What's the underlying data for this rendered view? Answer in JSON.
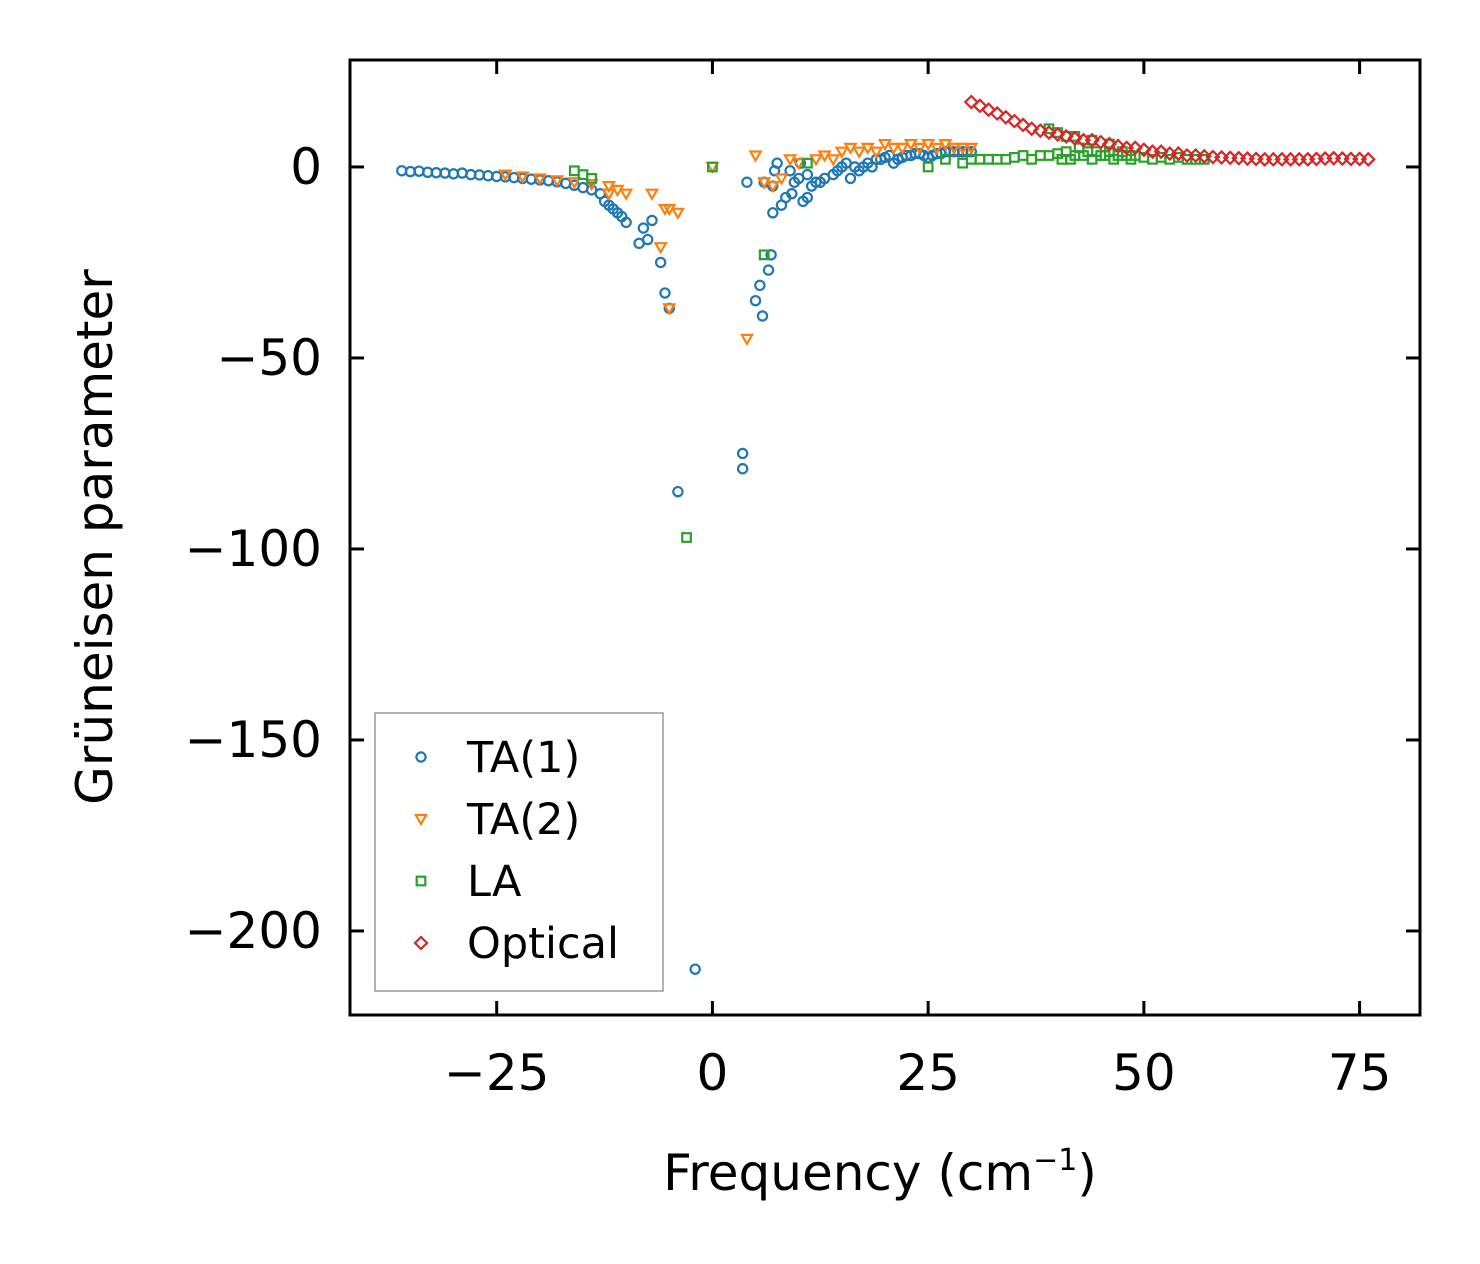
{
  "chart_data": {
    "type": "scatter",
    "title": "",
    "xlabel": "Frequency (cm",
    "xlabel_sup": "−1",
    "xlabel_close": ")",
    "ylabel": "Grüneisen parameter",
    "xlim": [
      -42,
      82
    ],
    "ylim": [
      -222,
      28
    ],
    "xticks": [
      -25,
      0,
      25,
      50,
      75
    ],
    "xtick_labels": [
      "−25",
      "0",
      "25",
      "50",
      "75"
    ],
    "yticks": [
      0,
      -50,
      -100,
      -150,
      -200
    ],
    "ytick_labels": [
      "0",
      "−50",
      "−100",
      "−150",
      "−200"
    ],
    "grid": false,
    "legend_position": "bottom-left",
    "series": [
      {
        "name": "TA(1)",
        "marker": "circle",
        "color": "#1f77b4",
        "points": [
          [
            -36,
            -1
          ],
          [
            -35,
            -1.2
          ],
          [
            -34,
            -1.1
          ],
          [
            -33,
            -1.4
          ],
          [
            -32,
            -1.5
          ],
          [
            -31,
            -1.6
          ],
          [
            -30,
            -1.8
          ],
          [
            -29,
            -1.6
          ],
          [
            -28,
            -2
          ],
          [
            -27,
            -2.1
          ],
          [
            -26,
            -2.3
          ],
          [
            -25,
            -2.5
          ],
          [
            -24,
            -2.6
          ],
          [
            -23,
            -2.8
          ],
          [
            -22,
            -3
          ],
          [
            -21,
            -3.2
          ],
          [
            -20,
            -3.4
          ],
          [
            -19,
            -3.6
          ],
          [
            -18,
            -3.9
          ],
          [
            -17,
            -4.3
          ],
          [
            -16,
            -4.8
          ],
          [
            -15,
            -5.4
          ],
          [
            -14,
            -6
          ],
          [
            -13,
            -7
          ],
          [
            -12.5,
            -9
          ],
          [
            -12,
            -10
          ],
          [
            -11.5,
            -11
          ],
          [
            -11,
            -12
          ],
          [
            -10.5,
            -13
          ],
          [
            -10,
            -14.5
          ],
          [
            -8.5,
            -20
          ],
          [
            -8,
            -16
          ],
          [
            -7.5,
            -19
          ],
          [
            -7,
            -14
          ],
          [
            -6,
            -25
          ],
          [
            -5.5,
            -33
          ],
          [
            -5,
            -37
          ],
          [
            -4,
            -85
          ],
          [
            -2,
            -210
          ],
          [
            3.5,
            -75
          ],
          [
            3.5,
            -79
          ],
          [
            4,
            -4
          ],
          [
            5,
            -35
          ],
          [
            5.5,
            -31
          ],
          [
            5.8,
            -39
          ],
          [
            6,
            -4
          ],
          [
            6.5,
            -27
          ],
          [
            6.8,
            -23
          ],
          [
            7,
            -12
          ],
          [
            7,
            -5
          ],
          [
            7.2,
            -1
          ],
          [
            7.5,
            1
          ],
          [
            8,
            -10
          ],
          [
            8.5,
            -8
          ],
          [
            9,
            -1
          ],
          [
            9.2,
            -7
          ],
          [
            9.5,
            -4
          ],
          [
            10,
            -3
          ],
          [
            10.2,
            1
          ],
          [
            10.5,
            -9
          ],
          [
            11,
            -8
          ],
          [
            11,
            -2
          ],
          [
            11.5,
            -5
          ],
          [
            12,
            -4
          ],
          [
            12.5,
            -4
          ],
          [
            13,
            -3
          ],
          [
            14,
            -2
          ],
          [
            14.5,
            -1
          ],
          [
            15,
            0
          ],
          [
            15.5,
            1
          ],
          [
            16,
            -3
          ],
          [
            16.5,
            0
          ],
          [
            17,
            -1
          ],
          [
            17.5,
            0
          ],
          [
            18,
            1
          ],
          [
            18.5,
            0
          ],
          [
            19,
            2
          ],
          [
            19.5,
            2
          ],
          [
            20,
            2.5
          ],
          [
            20.5,
            3
          ],
          [
            21,
            1
          ],
          [
            21.5,
            2
          ],
          [
            22,
            2.5
          ],
          [
            22.5,
            3
          ],
          [
            23,
            3
          ],
          [
            23.5,
            3.5
          ],
          [
            24,
            3.5
          ],
          [
            24.5,
            3
          ],
          [
            25,
            2.5
          ],
          [
            25.5,
            3
          ],
          [
            26,
            3.5
          ],
          [
            26.5,
            3.5
          ],
          [
            27,
            4
          ],
          [
            27.5,
            4
          ],
          [
            28,
            4
          ],
          [
            28.5,
            4
          ],
          [
            29,
            4
          ],
          [
            29.5,
            4
          ],
          [
            30,
            4
          ]
        ]
      },
      {
        "name": "TA(2)",
        "marker": "triangle-down",
        "color": "#ff7f0e",
        "points": [
          [
            -24,
            -2
          ],
          [
            -22,
            -2.5
          ],
          [
            -20,
            -3
          ],
          [
            -18,
            -3.5
          ],
          [
            -16,
            -4
          ],
          [
            -14,
            -4.5
          ],
          [
            -12,
            -5
          ],
          [
            -12,
            -7
          ],
          [
            -11,
            -6
          ],
          [
            -10,
            -7
          ],
          [
            -7,
            -7
          ],
          [
            -6,
            -21
          ],
          [
            -5.5,
            -11
          ],
          [
            -5,
            -11
          ],
          [
            -5,
            -37
          ],
          [
            -4,
            -12
          ],
          [
            0,
            0
          ],
          [
            4,
            -45
          ],
          [
            5,
            3
          ],
          [
            6,
            -4
          ],
          [
            7,
            -5
          ],
          [
            8,
            -3
          ],
          [
            9,
            2
          ],
          [
            10,
            1
          ],
          [
            12,
            2
          ],
          [
            13,
            3
          ],
          [
            14,
            2
          ],
          [
            15,
            4
          ],
          [
            16,
            5
          ],
          [
            17,
            4
          ],
          [
            18,
            5
          ],
          [
            19,
            4
          ],
          [
            20,
            6
          ],
          [
            21,
            5
          ],
          [
            22,
            5
          ],
          [
            23,
            6
          ],
          [
            24,
            5
          ],
          [
            25,
            6
          ],
          [
            26,
            5
          ],
          [
            27,
            6
          ],
          [
            28,
            5
          ],
          [
            29,
            5
          ],
          [
            30,
            5
          ]
        ]
      },
      {
        "name": "LA",
        "marker": "square",
        "color": "#2ca02c",
        "points": [
          [
            -16,
            -1
          ],
          [
            -15,
            -2
          ],
          [
            -14,
            -3
          ],
          [
            -3,
            -97
          ],
          [
            0,
            0
          ],
          [
            6,
            -23
          ],
          [
            11,
            1
          ],
          [
            25,
            0
          ],
          [
            27,
            2
          ],
          [
            29,
            1
          ],
          [
            30,
            2
          ],
          [
            31,
            2
          ],
          [
            32,
            2
          ],
          [
            33,
            2
          ],
          [
            34,
            2
          ],
          [
            35,
            2.5
          ],
          [
            36,
            3
          ],
          [
            37,
            2
          ],
          [
            38,
            3
          ],
          [
            39,
            3
          ],
          [
            40,
            3.5
          ],
          [
            40.5,
            2
          ],
          [
            41,
            4
          ],
          [
            41.5,
            2
          ],
          [
            42,
            3
          ],
          [
            42.5,
            5
          ],
          [
            43,
            3
          ],
          [
            43.5,
            4
          ],
          [
            44,
            2
          ],
          [
            44.5,
            4
          ],
          [
            45,
            3
          ],
          [
            45.5,
            3
          ],
          [
            46,
            4
          ],
          [
            46.5,
            2
          ],
          [
            47,
            3
          ],
          [
            47.5,
            4
          ],
          [
            48,
            3
          ],
          [
            48.5,
            2
          ],
          [
            49,
            3
          ],
          [
            50,
            2.5
          ],
          [
            51,
            2
          ],
          [
            52,
            2.5
          ],
          [
            53,
            2
          ],
          [
            54,
            2.5
          ],
          [
            55,
            2
          ],
          [
            56,
            2
          ],
          [
            57,
            2
          ],
          [
            39,
            10
          ],
          [
            40,
            9
          ],
          [
            41,
            8
          ],
          [
            42,
            8
          ],
          [
            44,
            7
          ],
          [
            46,
            6
          ]
        ]
      },
      {
        "name": "Optical",
        "marker": "diamond",
        "color": "#d62728",
        "points": [
          [
            30,
            17
          ],
          [
            31,
            16
          ],
          [
            32,
            15
          ],
          [
            33,
            14
          ],
          [
            34,
            13
          ],
          [
            35,
            12
          ],
          [
            36,
            11
          ],
          [
            37,
            10
          ],
          [
            38,
            9.5
          ],
          [
            39,
            9
          ],
          [
            40,
            8.5
          ],
          [
            41,
            8
          ],
          [
            42,
            7.5
          ],
          [
            43,
            7
          ],
          [
            44,
            7
          ],
          [
            45,
            6.5
          ],
          [
            46,
            6
          ],
          [
            47,
            5.5
          ],
          [
            48,
            5
          ],
          [
            49,
            5
          ],
          [
            50,
            4.5
          ],
          [
            51,
            4
          ],
          [
            52,
            4
          ],
          [
            53,
            3.5
          ],
          [
            54,
            3.5
          ],
          [
            55,
            3
          ],
          [
            56,
            3
          ],
          [
            57,
            2.8
          ],
          [
            58,
            2.6
          ],
          [
            59,
            2.5
          ],
          [
            60,
            2.4
          ],
          [
            61,
            2.3
          ],
          [
            62,
            2.2
          ],
          [
            63,
            2.1
          ],
          [
            64,
            2
          ],
          [
            65,
            2
          ],
          [
            66,
            2
          ],
          [
            67,
            2
          ],
          [
            68,
            2
          ],
          [
            69,
            2
          ],
          [
            70,
            2.1
          ],
          [
            71,
            2.2
          ],
          [
            72,
            2.3
          ],
          [
            73,
            2.2
          ],
          [
            74,
            2.1
          ],
          [
            75,
            2.1
          ],
          [
            76,
            2
          ]
        ]
      }
    ]
  }
}
